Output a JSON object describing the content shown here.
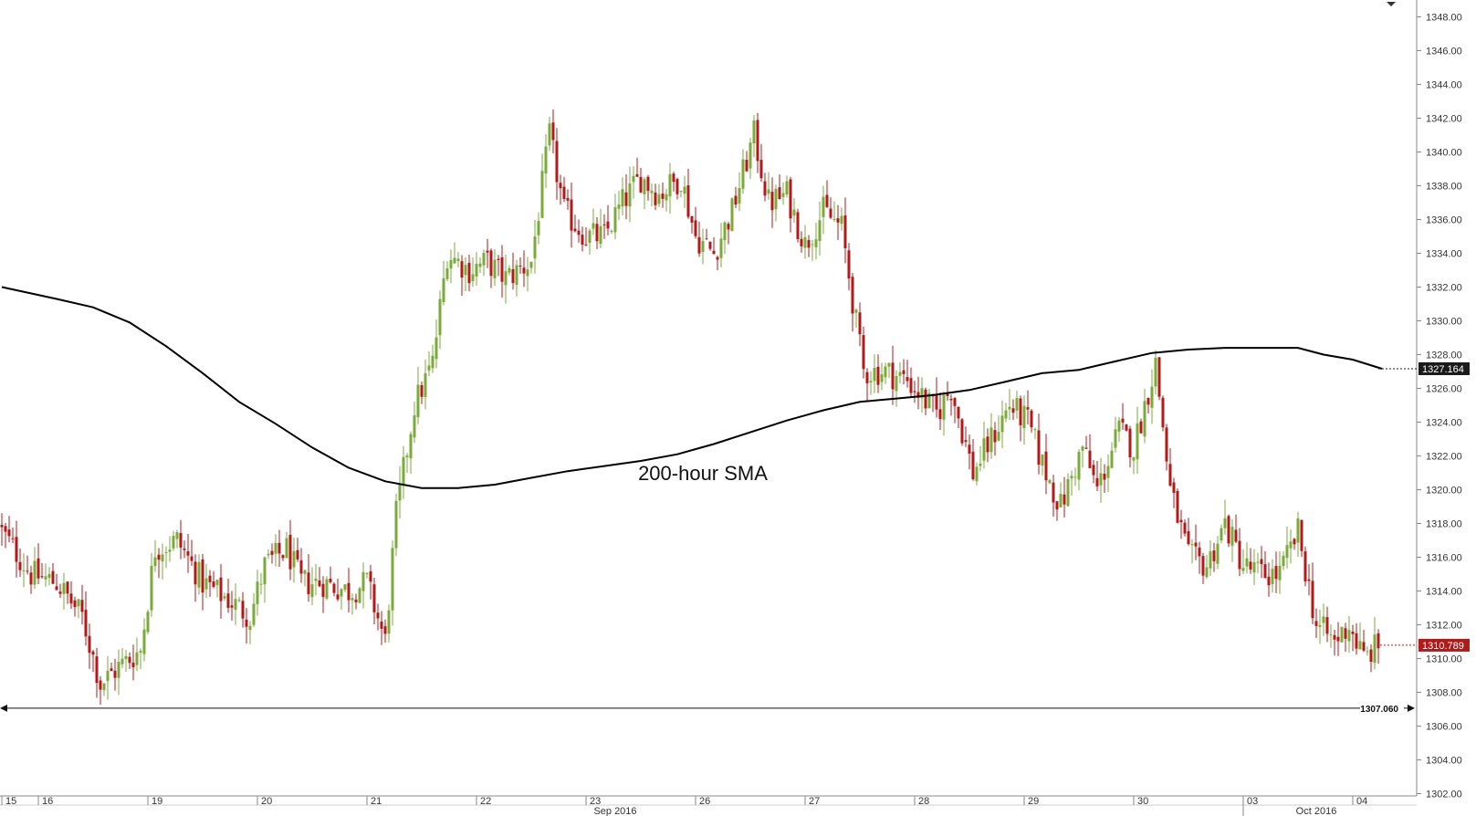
{
  "chart_data": {
    "type": "candlestick",
    "y_ticks": [
      "1302.00",
      "1304.00",
      "1306.00",
      "1308.00",
      "1310.00",
      "1312.00",
      "1314.00",
      "1316.00",
      "1318.00",
      "1320.00",
      "1322.00",
      "1324.00",
      "1326.00",
      "1328.00",
      "1330.00",
      "1332.00",
      "1334.00",
      "1336.00",
      "1338.00",
      "1340.00",
      "1342.00",
      "1344.00",
      "1346.00",
      "1348.00"
    ],
    "ylim": [
      1301,
      1349
    ],
    "x_day_labels": [
      {
        "label": "15",
        "index": 0
      },
      {
        "label": "16",
        "index": 10
      },
      {
        "label": "19",
        "index": 40
      },
      {
        "label": "20",
        "index": 70
      },
      {
        "label": "21",
        "index": 100
      },
      {
        "label": "22",
        "index": 130
      },
      {
        "label": "23",
        "index": 160
      },
      {
        "label": "26",
        "index": 190
      },
      {
        "label": "27",
        "index": 220
      },
      {
        "label": "28",
        "index": 250
      },
      {
        "label": "29",
        "index": 280
      },
      {
        "label": "30",
        "index": 310
      },
      {
        "label": "03",
        "index": 340
      },
      {
        "label": "04",
        "index": 370
      }
    ],
    "x_month_labels": [
      {
        "label": "Sep 2016",
        "index": 168
      },
      {
        "label": "Oct 2016",
        "index": 360
      }
    ],
    "month_start_index": 340,
    "bar_count": 378,
    "close_path": [
      [
        0,
        1317.5
      ],
      [
        8,
        1315.0
      ],
      [
        15,
        1314.5
      ],
      [
        22,
        1312.5
      ],
      [
        27,
        1308.5
      ],
      [
        32,
        1309.5
      ],
      [
        38,
        1310.5
      ],
      [
        42,
        1316.5
      ],
      [
        48,
        1317.0
      ],
      [
        55,
        1314.5
      ],
      [
        62,
        1313.5
      ],
      [
        68,
        1312.5
      ],
      [
        72,
        1315.5
      ],
      [
        78,
        1316.5
      ],
      [
        82,
        1314.5
      ],
      [
        88,
        1314.5
      ],
      [
        95,
        1314.0
      ],
      [
        100,
        1314.5
      ],
      [
        105,
        1311.0
      ],
      [
        108,
        1318.5
      ],
      [
        113,
        1325.0
      ],
      [
        118,
        1327.5
      ],
      [
        122,
        1334.0
      ],
      [
        128,
        1333.0
      ],
      [
        133,
        1333.5
      ],
      [
        138,
        1332.5
      ],
      [
        145,
        1333.5
      ],
      [
        150,
        1341.0
      ],
      [
        154,
        1336.5
      ],
      [
        160,
        1335.0
      ],
      [
        165,
        1335.0
      ],
      [
        170,
        1337.0
      ],
      [
        175,
        1338.5
      ],
      [
        180,
        1337.5
      ],
      [
        186,
        1338.5
      ],
      [
        190,
        1335.0
      ],
      [
        195,
        1334.0
      ],
      [
        200,
        1336.5
      ],
      [
        206,
        1341.0
      ],
      [
        210,
        1337.0
      ],
      [
        215,
        1337.5
      ],
      [
        220,
        1334.5
      ],
      [
        225,
        1336.5
      ],
      [
        230,
        1335.5
      ],
      [
        236,
        1327.0
      ],
      [
        242,
        1327.0
      ],
      [
        248,
        1326.5
      ],
      [
        252,
        1325.5
      ],
      [
        256,
        1324.5
      ],
      [
        260,
        1326.0
      ],
      [
        266,
        1321.0
      ],
      [
        271,
        1323.0
      ],
      [
        276,
        1325.0
      ],
      [
        281,
        1324.0
      ],
      [
        285,
        1321.5
      ],
      [
        290,
        1319.0
      ],
      [
        296,
        1322.5
      ],
      [
        300,
        1320.0
      ],
      [
        306,
        1323.5
      ],
      [
        310,
        1322.5
      ],
      [
        316,
        1327.5
      ],
      [
        320,
        1320.0
      ],
      [
        325,
        1316.0
      ],
      [
        330,
        1315.5
      ],
      [
        335,
        1318.0
      ],
      [
        340,
        1315.5
      ],
      [
        345,
        1315.0
      ],
      [
        350,
        1315.0
      ],
      [
        355,
        1317.5
      ],
      [
        360,
        1312.0
      ],
      [
        365,
        1311.0
      ],
      [
        369,
        1312.0
      ],
      [
        373,
        1310.0
      ],
      [
        377,
        1310.8
      ]
    ],
    "sma": {
      "label": "200-hour SMA",
      "color": "#000000",
      "points": [
        [
          0,
          1332.0
        ],
        [
          15,
          1331.3
        ],
        [
          25,
          1330.8
        ],
        [
          35,
          1329.9
        ],
        [
          45,
          1328.5
        ],
        [
          55,
          1326.9
        ],
        [
          65,
          1325.2
        ],
        [
          75,
          1323.9
        ],
        [
          85,
          1322.5
        ],
        [
          95,
          1321.3
        ],
        [
          105,
          1320.5
        ],
        [
          115,
          1320.1
        ],
        [
          125,
          1320.1
        ],
        [
          135,
          1320.3
        ],
        [
          145,
          1320.7
        ],
        [
          155,
          1321.1
        ],
        [
          165,
          1321.4
        ],
        [
          175,
          1321.7
        ],
        [
          185,
          1322.1
        ],
        [
          195,
          1322.7
        ],
        [
          205,
          1323.4
        ],
        [
          215,
          1324.1
        ],
        [
          225,
          1324.7
        ],
        [
          235,
          1325.2
        ],
        [
          245,
          1325.4
        ],
        [
          255,
          1325.6
        ],
        [
          265,
          1325.9
        ],
        [
          275,
          1326.4
        ],
        [
          285,
          1326.9
        ],
        [
          295,
          1327.1
        ],
        [
          305,
          1327.6
        ],
        [
          315,
          1328.1
        ],
        [
          325,
          1328.3
        ],
        [
          335,
          1328.4
        ],
        [
          345,
          1328.4
        ],
        [
          355,
          1328.4
        ],
        [
          362,
          1328.0
        ],
        [
          370,
          1327.7
        ],
        [
          378,
          1327.16
        ]
      ]
    },
    "current_price": "1310.789",
    "sma_value": "1327.164",
    "support_level": "1307.060",
    "annotation": "200-hour SMA",
    "colors": {
      "up": "#7aab3a",
      "down": "#b21a1a",
      "sma": "#000000",
      "price_tag": "#b21a1a",
      "sma_tag": "#1a1a1a",
      "grid_border": "#888888"
    }
  }
}
